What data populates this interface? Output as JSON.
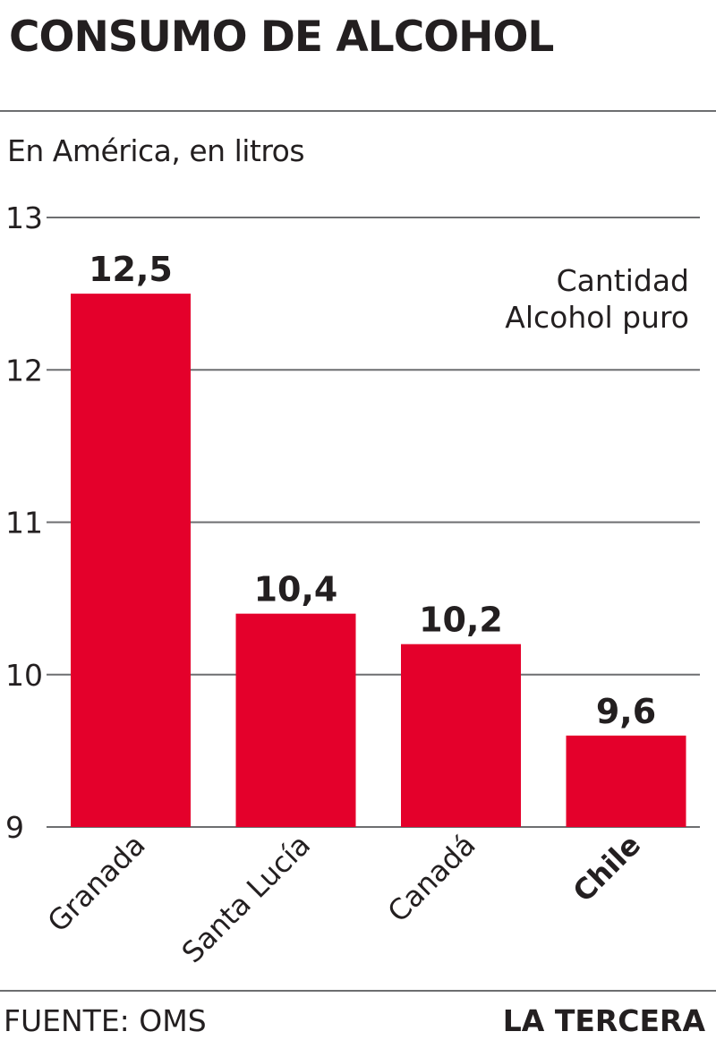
{
  "header": {
    "title": "CONSUMO DE ALCOHOL",
    "subtitle": "En América, en litros"
  },
  "footer": {
    "source": "FUENTE: OMS",
    "brand": "LA TERCERA"
  },
  "legend": {
    "line1": "Cantidad",
    "line2": "Alcohol puro"
  },
  "colors": {
    "bar": "#e4002b",
    "grid": "#6d6e70",
    "text": "#231f20"
  },
  "chart_data": {
    "type": "bar",
    "categories": [
      "Granada",
      "Santa Lucía",
      "Canadá",
      "Chile"
    ],
    "values": [
      12.5,
      10.4,
      10.2,
      9.6
    ],
    "value_labels": [
      "12,5",
      "10,4",
      "10,2",
      "9,6"
    ],
    "ylim": [
      9,
      13
    ],
    "yticks": [
      9,
      10,
      11,
      12,
      13
    ],
    "ytick_labels": [
      "9",
      "10",
      "11",
      "12",
      "13"
    ],
    "grid": true
  }
}
